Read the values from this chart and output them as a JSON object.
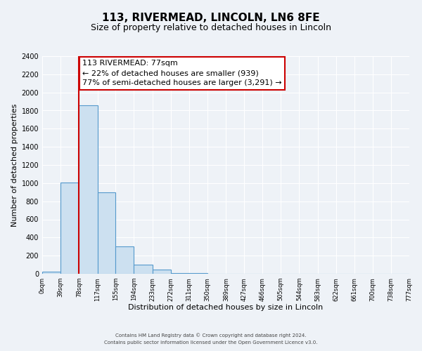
{
  "title": "113, RIVERMEAD, LINCOLN, LN6 8FE",
  "subtitle": "Size of property relative to detached houses in Lincoln",
  "xlabel": "Distribution of detached houses by size in Lincoln",
  "ylabel": "Number of detached properties",
  "bin_edges": [
    0,
    39,
    78,
    117,
    155,
    194,
    233,
    272,
    311,
    350,
    389,
    427,
    466,
    505,
    544,
    583,
    622,
    661,
    700,
    738,
    777
  ],
  "bar_heights": [
    20,
    1010,
    1860,
    900,
    300,
    100,
    45,
    10,
    5,
    0,
    0,
    0,
    0,
    0,
    0,
    0,
    0,
    0,
    0,
    0
  ],
  "bar_color": "#cce0f0",
  "bar_edge_color": "#5599cc",
  "red_line_x": 78,
  "annotation_text": "113 RIVERMEAD: 77sqm\n← 22% of detached houses are smaller (939)\n77% of semi-detached houses are larger (3,291) →",
  "annotation_box_color": "#ffffff",
  "annotation_box_edge_color": "#cc0000",
  "ylim": [
    0,
    2400
  ],
  "yticks": [
    0,
    200,
    400,
    600,
    800,
    1000,
    1200,
    1400,
    1600,
    1800,
    2000,
    2200,
    2400
  ],
  "xtick_labels": [
    "0sqm",
    "39sqm",
    "78sqm",
    "117sqm",
    "155sqm",
    "194sqm",
    "233sqm",
    "272sqm",
    "311sqm",
    "350sqm",
    "389sqm",
    "427sqm",
    "466sqm",
    "505sqm",
    "544sqm",
    "583sqm",
    "622sqm",
    "661sqm",
    "700sqm",
    "738sqm",
    "777sqm"
  ],
  "footer_line1": "Contains HM Land Registry data © Crown copyright and database right 2024.",
  "footer_line2": "Contains public sector information licensed under the Open Government Licence v3.0.",
  "background_color": "#eef2f7",
  "plot_bg_color": "#eef2f7",
  "grid_color": "#ffffff",
  "title_fontsize": 11,
  "subtitle_fontsize": 9,
  "ylabel_fontsize": 8,
  "xlabel_fontsize": 8,
  "annotation_fontsize": 8,
  "ytick_fontsize": 7,
  "xtick_fontsize": 6
}
